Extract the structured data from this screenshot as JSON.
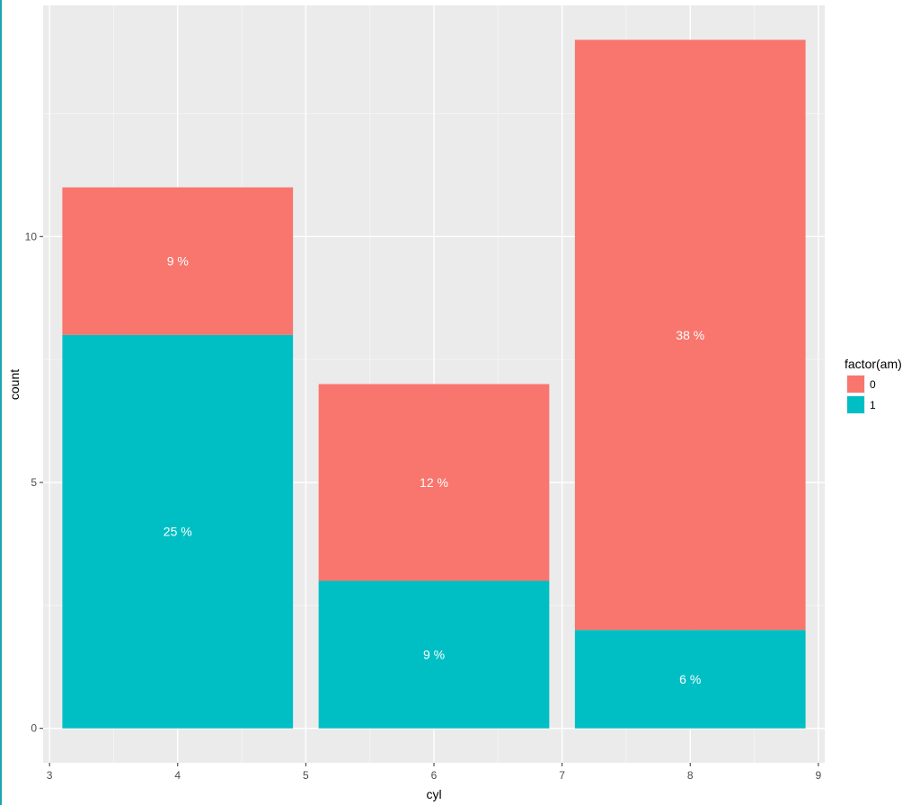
{
  "chart_data": {
    "type": "bar",
    "stacked": true,
    "xlabel": "cyl",
    "ylabel": "count",
    "xlim": [
      2.95,
      9.05
    ],
    "ylim": [
      -0.7,
      14.7
    ],
    "x_ticks": [
      3,
      4,
      5,
      6,
      7,
      8,
      9
    ],
    "y_ticks": [
      0,
      5,
      10
    ],
    "panel_background": "#ebebeb",
    "grid": true,
    "legend": {
      "title": "factor(am)",
      "position": "right",
      "entries": [
        {
          "label": "0",
          "color": "#f8766d"
        },
        {
          "label": "1",
          "color": "#00bfc4"
        }
      ]
    },
    "categories": [
      4,
      6,
      8
    ],
    "series": [
      {
        "name": "1",
        "color": "#00bfc4",
        "values": [
          8,
          3,
          2
        ],
        "labels": [
          "25 %",
          "9 %",
          "6 %"
        ]
      },
      {
        "name": "0",
        "color": "#f8766d",
        "values": [
          3,
          4,
          12
        ],
        "labels": [
          "9 %",
          "12 %",
          "38 %"
        ]
      }
    ]
  }
}
